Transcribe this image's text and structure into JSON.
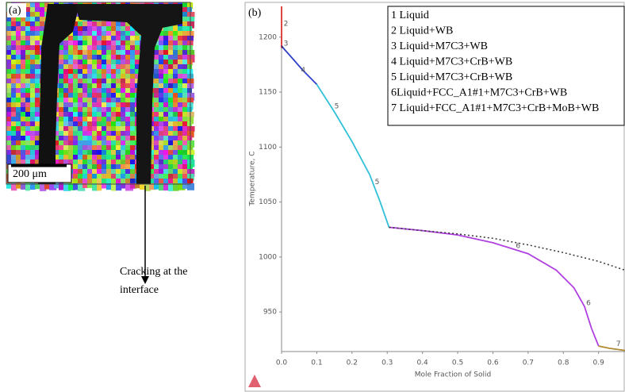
{
  "panel_a": {
    "label": "(a)",
    "scale_bar": "200 μm",
    "caption_lines": [
      "Cracking at the",
      "interface"
    ]
  },
  "chart_data": {
    "type": "line",
    "panel_label": "(b)",
    "x_label": "Mole Fraction of Solid",
    "y_label": "Temperature, C",
    "xlim": [
      0,
      0.975
    ],
    "ylim": [
      914,
      1228
    ],
    "xticks": [
      {
        "value": 0,
        "label": "0.0"
      },
      0.1,
      0.2,
      0.3,
      0.4,
      0.5,
      0.6,
      0.7,
      0.8,
      0.9
    ],
    "yticks": [
      950,
      1000,
      1050,
      1100,
      1150,
      1200
    ],
    "grid": false,
    "series": [
      {
        "name": "1 Liquid",
        "color": "#d03030",
        "x": [],
        "values": []
      },
      {
        "name": "2 Liquid+WB",
        "color": "#e03030",
        "x": [
          0,
          0
        ],
        "values": [
          1228,
          1190
        ]
      },
      {
        "name": "3 Liquid+M7C3+WB",
        "color": "#1a237e",
        "x": [
          0,
          0.005
        ],
        "values": [
          1192,
          1190
        ]
      },
      {
        "name": "4 Liquid+M7C3+CrB+WB",
        "color": "#3040c8",
        "x": [
          0.005,
          0.03,
          0.06,
          0.1
        ],
        "values": [
          1190,
          1181,
          1170,
          1157
        ]
      },
      {
        "name": "5 Liquid+M7C3+CrB+WB",
        "color": "#30c0d8",
        "x": [
          0.1,
          0.15,
          0.2,
          0.25,
          0.28,
          0.305
        ],
        "values": [
          1157,
          1132,
          1105,
          1075,
          1050,
          1027
        ]
      },
      {
        "name": "6Liquid+FCC_A1#1+M7C3+CrB+WB",
        "color": "#b040e0",
        "x": [
          0.305,
          0.4,
          0.5,
          0.6,
          0.7,
          0.78,
          0.83,
          0.86,
          0.88,
          0.9
        ],
        "values": [
          1027,
          1024,
          1020,
          1013,
          1003,
          988,
          972,
          955,
          935,
          919
        ]
      },
      {
        "name": "7 Liquid+FCC_A1#1+M7C3+CrB+MoB+WB",
        "color": "#b08a30",
        "x": [
          0.9,
          0.93,
          0.975
        ],
        "values": [
          919,
          917,
          915
        ]
      },
      {
        "color": "#333333",
        "dashed": true,
        "x": [
          0.305,
          0.4,
          0.5,
          0.6,
          0.7,
          0.8,
          0.9,
          0.975
        ],
        "values": [
          1027,
          1024,
          1021,
          1017,
          1011,
          1004,
          996,
          988
        ]
      }
    ],
    "annotations": [
      {
        "text": "2",
        "x": 0.006,
        "y": 1212
      },
      {
        "text": "3",
        "x": 0.006,
        "y": 1194
      },
      {
        "text": "4",
        "x": 0.055,
        "y": 1170
      },
      {
        "text": "5",
        "x": 0.15,
        "y": 1137
      },
      {
        "text": "5",
        "x": 0.265,
        "y": 1068
      },
      {
        "text": "6",
        "x": 0.665,
        "y": 1010
      },
      {
        "text": "6",
        "x": 0.865,
        "y": 958
      },
      {
        "text": "7",
        "x": 0.95,
        "y": 921
      }
    ]
  }
}
